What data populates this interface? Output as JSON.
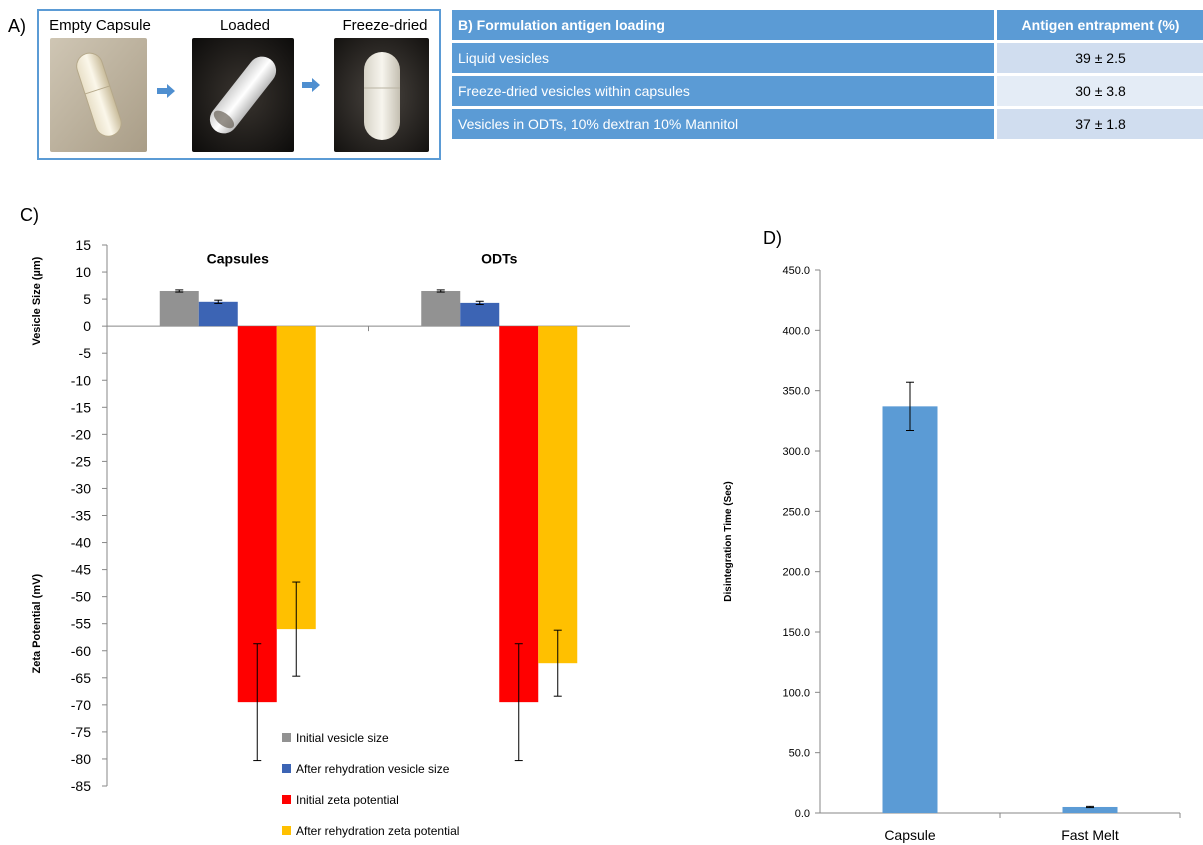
{
  "panelA": {
    "label": "A)",
    "images": [
      {
        "title": "Empty Capsule"
      },
      {
        "title": "Loaded"
      },
      {
        "title": "Freeze-dried"
      }
    ]
  },
  "panelB": {
    "header": [
      "B) Formulation antigen loading",
      "Antigen entrapment (%)"
    ],
    "rows": [
      {
        "label": "Liquid vesicles",
        "value": "39 ± 2.5"
      },
      {
        "label": "Freeze-dried vesicles within capsules",
        "value": "30 ± 3.8"
      },
      {
        "label": "Vesicles in ODTs, 10% dextran 10% Mannitol",
        "value": "37 ± 1.8"
      }
    ]
  },
  "panelC_label": "C)",
  "panelD_label": "D)",
  "chart_data": [
    {
      "type": "bar",
      "ylabel_top": "Vesicle Size (µm)",
      "ylabel_bottom": "Zeta Potential (mV)",
      "ylim": [
        -85,
        15
      ],
      "yticks": [
        15,
        10,
        5,
        0,
        -5,
        -10,
        -15,
        -20,
        -25,
        -30,
        -35,
        -40,
        -45,
        -50,
        -55,
        -60,
        -65,
        -70,
        -75,
        -80,
        -85
      ],
      "categories": [
        "Capsules",
        "ODTs"
      ],
      "series": [
        {
          "name": "Initial vesicle size",
          "color": "#929292",
          "values": [
            6.5,
            6.5
          ],
          "errors": [
            0.2,
            0.2
          ]
        },
        {
          "name": "After rehydration vesicle size",
          "color": "#3c64b4",
          "values": [
            4.5,
            4.3
          ],
          "errors": [
            0.3,
            0.3
          ]
        },
        {
          "name": "Initial zeta potential",
          "color": "#ff0000",
          "values": [
            -69.5,
            -69.5
          ],
          "errors": [
            10.8,
            10.8
          ]
        },
        {
          "name": "After rehydration zeta potential",
          "color": "#ffc000",
          "values": [
            -56,
            -62.3
          ],
          "errors": [
            8.7,
            6.1
          ]
        }
      ],
      "grid": false,
      "legend_position": "bottom-center"
    },
    {
      "type": "bar",
      "ylabel": "Disintegration Time (Sec)",
      "ylim": [
        0,
        450
      ],
      "yticks": [
        "0.0",
        "50.0",
        "100.0",
        "150.0",
        "200.0",
        "250.0",
        "300.0",
        "350.0",
        "400.0",
        "450.0"
      ],
      "categories": [
        "Capsule",
        "Fast Melt"
      ],
      "values": [
        337,
        5
      ],
      "errors": [
        20,
        0.5
      ],
      "color": "#5b9bd5",
      "grid": false
    }
  ]
}
